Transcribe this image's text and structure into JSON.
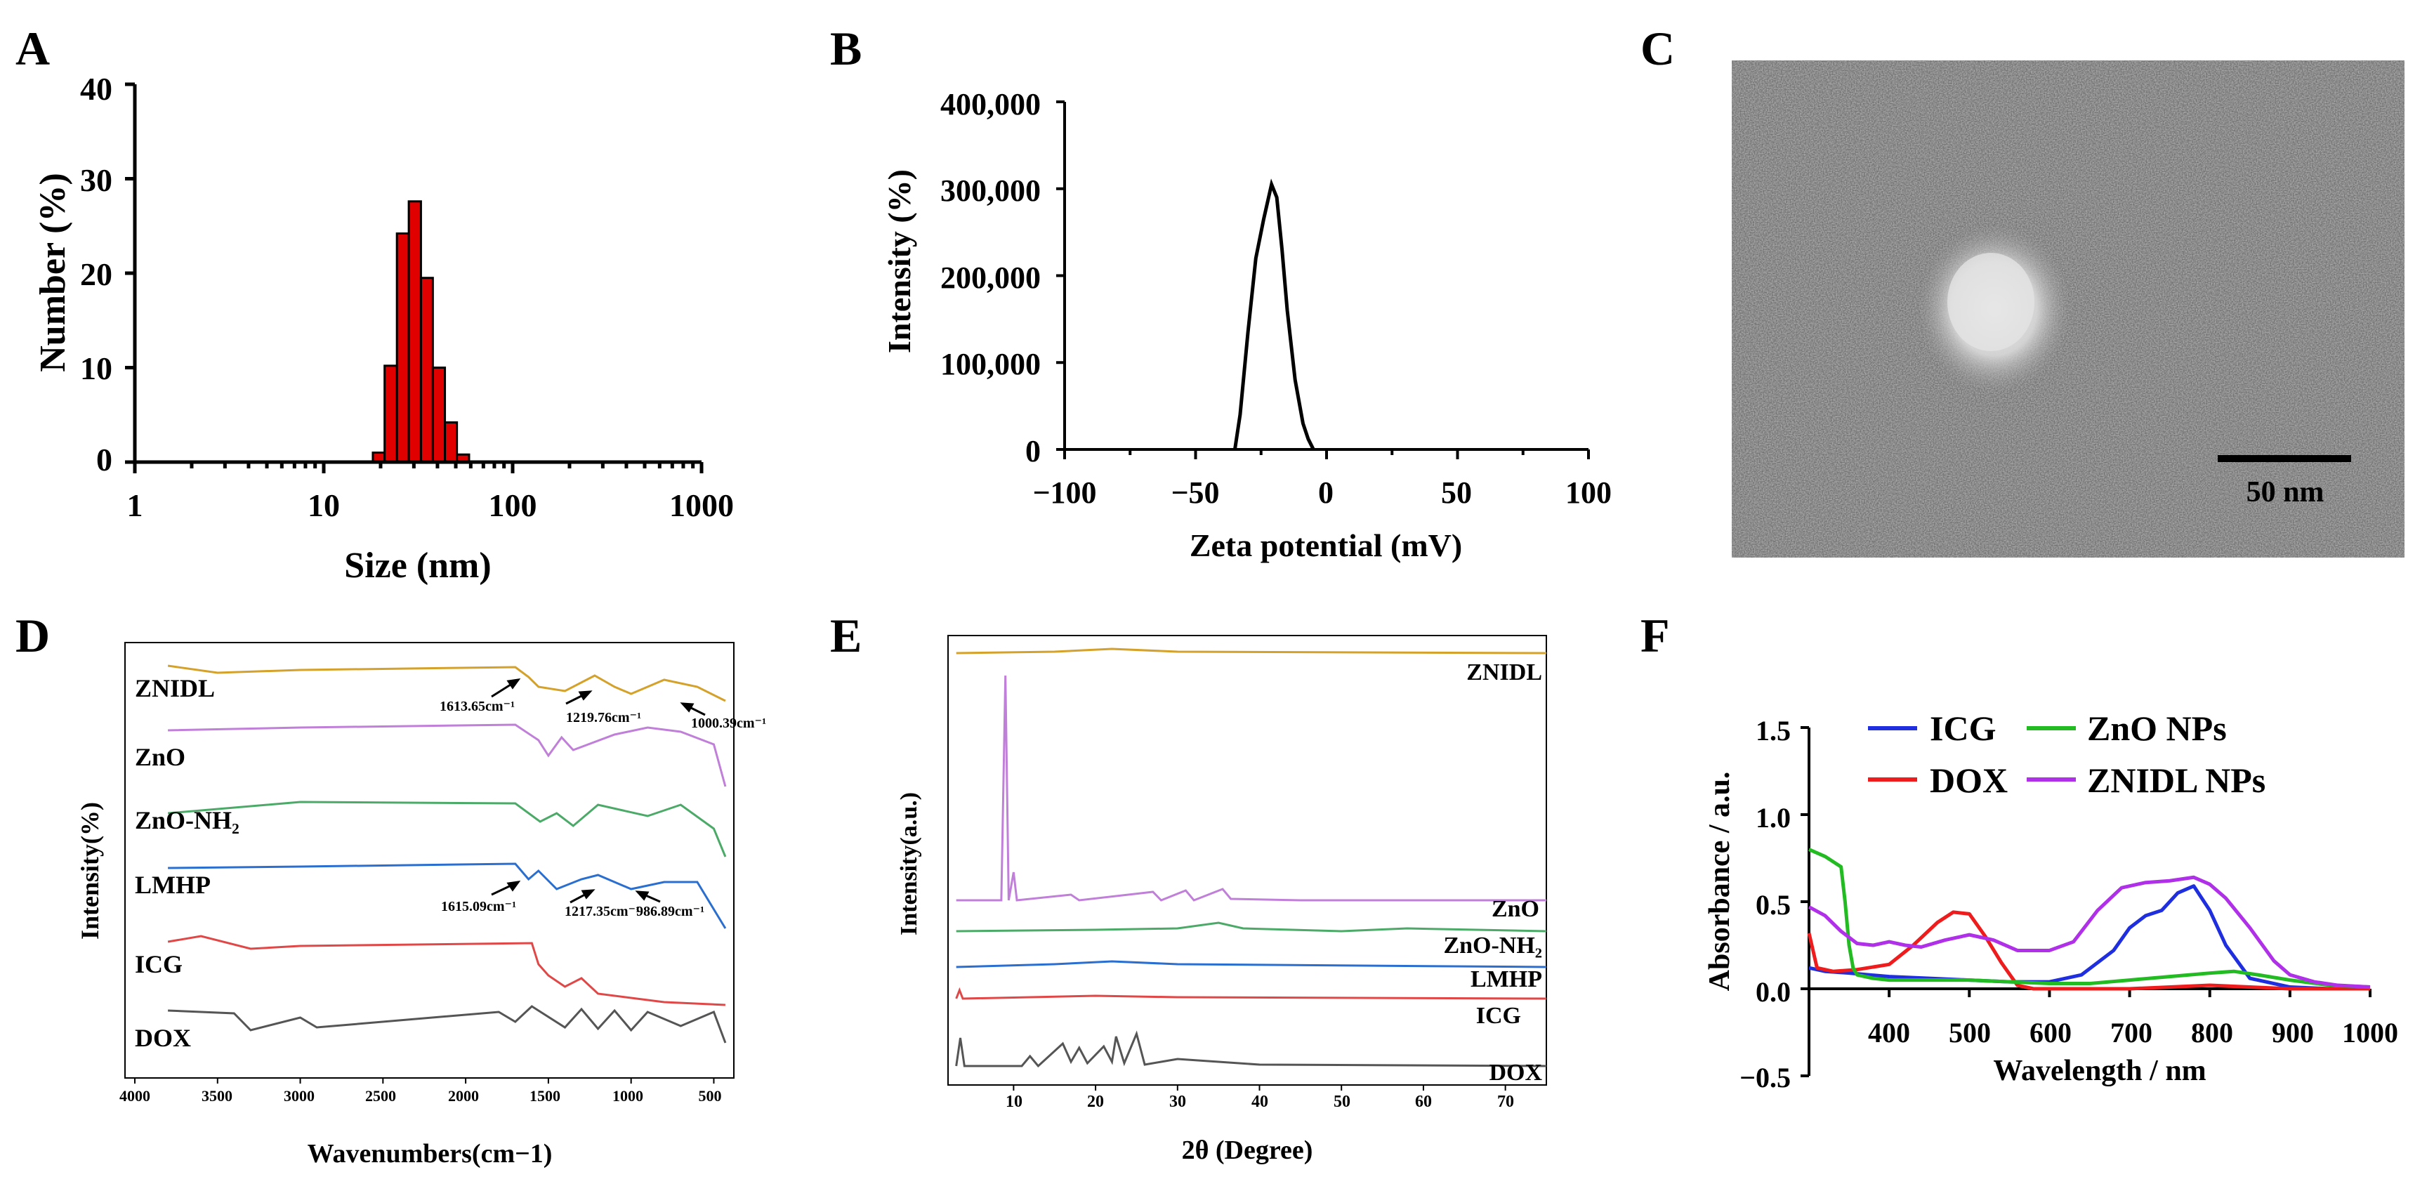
{
  "panels": {
    "A": {
      "letter": "A"
    },
    "B": {
      "letter": "B"
    },
    "C": {
      "letter": "C"
    },
    "D": {
      "letter": "D"
    },
    "E": {
      "letter": "E"
    },
    "F": {
      "letter": "F"
    }
  },
  "chart_data": [
    {
      "id": "A",
      "type": "bar",
      "xscale": "log",
      "xlabel": "Size (nm)",
      "ylabel": "Number (%)",
      "xlim": [
        1,
        1000
      ],
      "ylim": [
        0,
        40
      ],
      "xticks": [
        "1",
        "10",
        "100",
        "1000"
      ],
      "yticks": [
        "0",
        "10",
        "20",
        "30",
        "40"
      ],
      "bar_color": "#e00000",
      "bins": [
        {
          "left": 18.2,
          "right": 21.0,
          "value": 1.0
        },
        {
          "left": 21.0,
          "right": 24.4,
          "value": 10.2
        },
        {
          "left": 24.4,
          "right": 28.2,
          "value": 24.2
        },
        {
          "left": 28.2,
          "right": 32.7,
          "value": 27.6
        },
        {
          "left": 32.7,
          "right": 37.8,
          "value": 19.5
        },
        {
          "left": 37.8,
          "right": 43.8,
          "value": 10.0
        },
        {
          "left": 43.8,
          "right": 50.7,
          "value": 4.2
        },
        {
          "left": 50.7,
          "right": 58.8,
          "value": 0.8
        }
      ]
    },
    {
      "id": "B",
      "type": "line",
      "xlabel": "Zeta potential (mV)",
      "ylabel": "Intensity (%)",
      "xlim": [
        -100,
        100
      ],
      "ylim": [
        0,
        400000
      ],
      "xticks": [
        "−100",
        "−50",
        "0",
        "50",
        "100"
      ],
      "yticks": [
        "0",
        "100,000",
        "200,000",
        "300,000",
        "400,000"
      ],
      "series": [
        {
          "name": "zeta",
          "color": "#000000",
          "x": [
            -35,
            -33,
            -30,
            -27,
            -24,
            -21,
            -19,
            -17,
            -15,
            -12,
            -9,
            -7,
            -5
          ],
          "y": [
            0,
            40000,
            135000,
            220000,
            265000,
            305000,
            290000,
            230000,
            160000,
            80000,
            30000,
            12000,
            0
          ]
        }
      ]
    },
    {
      "id": "C",
      "type": "image",
      "scale_bar_label": "50 nm"
    },
    {
      "id": "D",
      "type": "line",
      "xlabel": "Wavenumbers(cm−1)",
      "ylabel": "Intensity(%)",
      "xlim": [
        4000,
        400
      ],
      "xticks": [
        "4000",
        "3500",
        "3000",
        "2500",
        "2000",
        "1500",
        "1000",
        "500"
      ],
      "series": [
        {
          "name": "ZNIDL",
          "color": "#d4a12a"
        },
        {
          "name": "ZnO",
          "color": "#c07fd8"
        },
        {
          "name": "ZnO-NH₂",
          "color": "#4caa68"
        },
        {
          "name": "LMHP",
          "color": "#2a6fd0"
        },
        {
          "name": "ICG",
          "color": "#e04848"
        },
        {
          "name": "DOX",
          "color": "#555555"
        }
      ],
      "annotations": [
        {
          "text": "1613.65cm⁻¹",
          "series": "ZNIDL"
        },
        {
          "text": "1219.76cm⁻¹",
          "series": "ZNIDL"
        },
        {
          "text": "1000.39cm⁻¹",
          "series": "ZNIDL"
        },
        {
          "text": "1615.09cm⁻¹",
          "series": "LMHP"
        },
        {
          "text": "1217.35cm⁻¹",
          "series": "LMHP"
        },
        {
          "text": "986.89cm⁻¹",
          "series": "LMHP"
        }
      ]
    },
    {
      "id": "E",
      "type": "line",
      "xlabel": "2θ (Degree)",
      "ylabel": "Intensity(a.u.)",
      "xlim": [
        2,
        75
      ],
      "xticks": [
        "10",
        "20",
        "30",
        "40",
        "50",
        "60",
        "70"
      ],
      "series": [
        {
          "name": "ZNIDL",
          "color": "#d4a12a"
        },
        {
          "name": "ZnO",
          "color": "#c07fd8"
        },
        {
          "name": "ZnO-NH₂",
          "color": "#4caa68"
        },
        {
          "name": "LMHP",
          "color": "#2a6fd0"
        },
        {
          "name": "ICG",
          "color": "#e04848"
        },
        {
          "name": "DOX",
          "color": "#555555"
        }
      ]
    },
    {
      "id": "F",
      "type": "line",
      "xlabel": "Wavelength / nm",
      "ylabel": "Absorbance / a.u.",
      "xlim": [
        300,
        1000
      ],
      "ylim": [
        -0.5,
        1.5
      ],
      "xticks": [
        "400",
        "500",
        "600",
        "700",
        "800",
        "900",
        "1000"
      ],
      "yticks": [
        "−0.5",
        "0.0",
        "0.5",
        "1.0",
        "1.5"
      ],
      "legend_position": "top",
      "series": [
        {
          "name": "ICG",
          "color": "#1f2fe0",
          "x": [
            300,
            320,
            350,
            400,
            450,
            500,
            550,
            600,
            640,
            680,
            700,
            720,
            740,
            760,
            780,
            800,
            820,
            850,
            900,
            950,
            1000
          ],
          "y": [
            0.12,
            0.1,
            0.09,
            0.07,
            0.06,
            0.05,
            0.04,
            0.04,
            0.08,
            0.22,
            0.35,
            0.42,
            0.45,
            0.55,
            0.59,
            0.45,
            0.25,
            0.06,
            0.01,
            0.0,
            0.0
          ]
        },
        {
          "name": "DOX",
          "color": "#ee1c1c",
          "x": [
            300,
            310,
            330,
            360,
            400,
            430,
            460,
            480,
            500,
            520,
            540,
            560,
            580,
            600,
            700,
            800,
            900,
            1000
          ],
          "y": [
            0.32,
            0.12,
            0.1,
            0.11,
            0.14,
            0.25,
            0.38,
            0.44,
            0.43,
            0.3,
            0.15,
            0.02,
            0.0,
            0.0,
            0.0,
            0.02,
            0.0,
            0.0
          ]
        },
        {
          "name": "ZnO NPs",
          "color": "#22bb22",
          "x": [
            300,
            310,
            320,
            330,
            340,
            345,
            350,
            355,
            360,
            380,
            400,
            500,
            600,
            650,
            700,
            750,
            800,
            830,
            860,
            900,
            950,
            1000
          ],
          "y": [
            0.8,
            0.78,
            0.76,
            0.73,
            0.7,
            0.5,
            0.25,
            0.12,
            0.08,
            0.06,
            0.05,
            0.05,
            0.03,
            0.03,
            0.05,
            0.07,
            0.09,
            0.1,
            0.08,
            0.05,
            0.02,
            0.01
          ]
        },
        {
          "name": "ZNIDL NPs",
          "color": "#b02fe8",
          "x": [
            300,
            320,
            340,
            360,
            380,
            400,
            420,
            440,
            470,
            500,
            530,
            560,
            600,
            630,
            660,
            690,
            720,
            750,
            780,
            800,
            820,
            850,
            880,
            900,
            930,
            960,
            1000
          ],
          "y": [
            0.47,
            0.42,
            0.33,
            0.26,
            0.25,
            0.27,
            0.25,
            0.24,
            0.28,
            0.31,
            0.28,
            0.22,
            0.22,
            0.27,
            0.45,
            0.58,
            0.61,
            0.62,
            0.64,
            0.6,
            0.52,
            0.35,
            0.16,
            0.08,
            0.04,
            0.02,
            0.01
          ]
        }
      ]
    }
  ]
}
